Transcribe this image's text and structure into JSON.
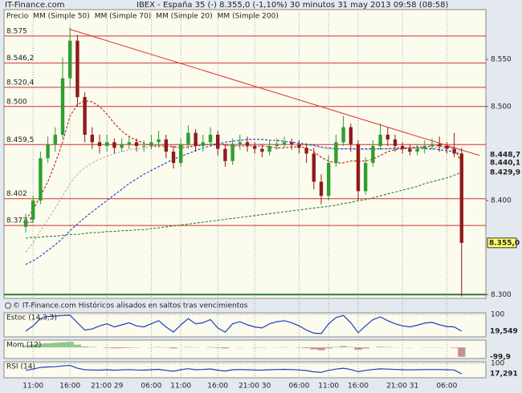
{
  "chart_data": [
    {
      "type": "candlestick",
      "site": "IT-Finance.com",
      "title": "IBEX - España 35 (-)   8.355,0 (-1,10%)   30 minutos  31 may 2013 09:58 (08:58)",
      "price_label": "Precio",
      "footer": "© IT-Finance.com  Históricos alisados en saltos tras vencimientos",
      "categories": [
        null,
        "11:00",
        null,
        null,
        null,
        null,
        "16:00",
        null,
        null,
        null,
        null,
        "21:00 29",
        null,
        null,
        null,
        null,
        null,
        "06:00",
        null,
        null,
        null,
        "11:00",
        null,
        null,
        null,
        null,
        "16:00",
        null,
        null,
        null,
        null,
        "21:00 30",
        null,
        null,
        null,
        null,
        null,
        "06:00",
        null,
        null,
        null,
        "11:00",
        null,
        null,
        null,
        "16:00",
        null,
        null,
        null,
        null,
        null,
        "21:00 31",
        null,
        null,
        null,
        null,
        null,
        "06:00",
        null,
        null
      ],
      "open": [
        8372,
        8380,
        8400,
        8445,
        8460,
        8470,
        8530,
        8570,
        8510,
        8470,
        8462,
        8458,
        8462,
        8456,
        8460,
        8462,
        8458,
        8458,
        8462,
        8465,
        8452,
        8440,
        8460,
        8472,
        8458,
        8462,
        8470,
        8455,
        8442,
        8460,
        8462,
        8458,
        8455,
        8452,
        8458,
        8460,
        8462,
        8460,
        8456,
        8450,
        8420,
        8405,
        8440,
        8462,
        8478,
        8460,
        8410,
        8440,
        8458,
        8470,
        8465,
        8458,
        8455,
        8452,
        8455,
        8458,
        8460,
        8458,
        8455,
        8450
      ],
      "high": [
        8386,
        8405,
        8452,
        8468,
        8478,
        8552,
        8584,
        8576,
        8515,
        8478,
        8470,
        8470,
        8466,
        8466,
        8468,
        8466,
        8464,
        8470,
        8474,
        8470,
        8458,
        8466,
        8480,
        8476,
        8470,
        8478,
        8474,
        8460,
        8466,
        8470,
        8468,
        8462,
        8460,
        8464,
        8466,
        8468,
        8466,
        8464,
        8460,
        8456,
        8428,
        8448,
        8470,
        8490,
        8482,
        8464,
        8446,
        8464,
        8482,
        8478,
        8470,
        8462,
        8460,
        8460,
        8464,
        8466,
        8468,
        8462,
        8472,
        8456
      ],
      "low": [
        8366,
        8376,
        8396,
        8440,
        8452,
        8466,
        8520,
        8500,
        8462,
        8455,
        8450,
        8452,
        8450,
        8452,
        8455,
        8452,
        8452,
        8454,
        8456,
        8445,
        8434,
        8436,
        8455,
        8452,
        8452,
        8458,
        8448,
        8436,
        8438,
        8454,
        8452,
        8450,
        8446,
        8448,
        8454,
        8456,
        8454,
        8450,
        8440,
        8412,
        8396,
        8400,
        8436,
        8458,
        8452,
        8400,
        8406,
        8436,
        8454,
        8458,
        8452,
        8450,
        8448,
        8448,
        8450,
        8454,
        8452,
        8450,
        8446,
        8298
      ],
      "close": [
        8380,
        8400,
        8445,
        8460,
        8470,
        8530,
        8570,
        8510,
        8470,
        8462,
        8458,
        8462,
        8456,
        8460,
        8462,
        8458,
        8458,
        8462,
        8465,
        8452,
        8440,
        8460,
        8472,
        8458,
        8462,
        8470,
        8455,
        8442,
        8460,
        8462,
        8458,
        8455,
        8452,
        8458,
        8460,
        8462,
        8460,
        8456,
        8450,
        8420,
        8405,
        8440,
        8462,
        8478,
        8460,
        8410,
        8440,
        8458,
        8470,
        8465,
        8458,
        8455,
        8452,
        8455,
        8458,
        8460,
        8458,
        8455,
        8450,
        8355
      ],
      "up_color": "#2f9e2f",
      "down_color": "#8e1b1b",
      "last_price": {
        "value": 8355,
        "label": "8.355,0"
      },
      "line_style": "dashed",
      "series": [
        {
          "name": "MM (Simple 50)",
          "color": "#b4b4b4",
          "values": [
            8345,
            8355,
            8368,
            8380,
            8392,
            8405,
            8418,
            8428,
            8435,
            8440,
            8444,
            8447,
            8450,
            8452,
            8454,
            8455,
            8456,
            8457,
            8458,
            8458,
            8458,
            8458,
            8459,
            8459,
            8459,
            8460,
            8460,
            8460,
            8460,
            8460,
            8460,
            8460,
            8460,
            8460,
            8460,
            8460,
            8460,
            8459,
            8459,
            8458,
            8456,
            8455,
            8455,
            8455,
            8455,
            8454,
            8454,
            8454,
            8455,
            8455,
            8455,
            8456,
            8456,
            8456,
            8456,
            8456,
            8456,
            8456,
            8455,
            8452
          ]
        },
        {
          "name": "MM (Simple 70)",
          "color": "#1f3fbf",
          "values": [
            8332,
            8336,
            8341,
            8347,
            8353,
            8360,
            8368,
            8375,
            8382,
            8388,
            8394,
            8400,
            8406,
            8412,
            8418,
            8423,
            8428,
            8432,
            8436,
            8440,
            8444,
            8447,
            8450,
            8453,
            8456,
            8458,
            8460,
            8462,
            8463,
            8464,
            8465,
            8465,
            8465,
            8464,
            8464,
            8463,
            8462,
            8461,
            8460,
            8459,
            8457,
            8456,
            8455,
            8455,
            8455,
            8455,
            8455,
            8455,
            8455,
            8455,
            8456,
            8456,
            8456,
            8456,
            8455,
            8455,
            8454,
            8453,
            8452,
            8448.7
          ],
          "value_labels": [
            null,
            null,
            null,
            null,
            null,
            null,
            null,
            null,
            null,
            null,
            null,
            null,
            null,
            null,
            null,
            null,
            null,
            null,
            null,
            null,
            null,
            null,
            null,
            null,
            null,
            null,
            null,
            null,
            null,
            null,
            null,
            null,
            null,
            null,
            null,
            null,
            null,
            null,
            null,
            null,
            null,
            null,
            null,
            null,
            null,
            null,
            null,
            null,
            null,
            null,
            null,
            null,
            null,
            null,
            null,
            null,
            null,
            null,
            null,
            "8.448,7"
          ]
        },
        {
          "name": "MM (Simple 20)",
          "color": "#b22222",
          "values": [
            8380,
            8390,
            8405,
            8420,
            8440,
            8462,
            8490,
            8502,
            8506,
            8505,
            8500,
            8492,
            8482,
            8474,
            8468,
            8464,
            8461,
            8458,
            8458,
            8458,
            8457,
            8456,
            8457,
            8458,
            8459,
            8460,
            8460,
            8459,
            8458,
            8458,
            8458,
            8458,
            8458,
            8457,
            8456,
            8456,
            8457,
            8457,
            8456,
            8452,
            8446,
            8442,
            8440,
            8440,
            8442,
            8442,
            8442,
            8444,
            8448,
            8452,
            8454,
            8455,
            8456,
            8457,
            8457,
            8458,
            8458,
            8457,
            8456,
            8440.1
          ],
          "value_labels": [
            null,
            null,
            null,
            null,
            null,
            null,
            null,
            null,
            null,
            null,
            null,
            null,
            null,
            null,
            null,
            null,
            null,
            null,
            null,
            null,
            null,
            null,
            null,
            null,
            null,
            null,
            null,
            null,
            null,
            null,
            null,
            null,
            null,
            null,
            null,
            null,
            null,
            null,
            null,
            null,
            null,
            null,
            null,
            null,
            null,
            null,
            null,
            null,
            null,
            null,
            null,
            null,
            null,
            null,
            null,
            null,
            null,
            null,
            null,
            "8.440,1"
          ]
        },
        {
          "name": "MM (Simple 200)",
          "color": "#2e7d2e",
          "values": [
            8360,
            8361,
            8361,
            8362,
            8362,
            8363,
            8364,
            8364,
            8365,
            8366,
            8366,
            8367,
            8367,
            8368,
            8368,
            8369,
            8369,
            8370,
            8371,
            8372,
            8373,
            8374,
            8375,
            8376,
            8377,
            8378,
            8379,
            8380,
            8381,
            8382,
            8383,
            8384,
            8385,
            8386,
            8387,
            8388,
            8389,
            8390,
            8391,
            8392,
            8393,
            8394,
            8395,
            8397,
            8398,
            8400,
            8401,
            8403,
            8405,
            8407,
            8409,
            8411,
            8413,
            8415,
            8418,
            8420,
            8422,
            8424,
            8427,
            8429.9
          ],
          "value_labels": [
            null,
            null,
            null,
            null,
            null,
            null,
            null,
            null,
            null,
            null,
            null,
            null,
            null,
            null,
            null,
            null,
            null,
            null,
            null,
            null,
            null,
            null,
            null,
            null,
            null,
            null,
            null,
            null,
            null,
            null,
            null,
            null,
            null,
            null,
            null,
            null,
            null,
            null,
            null,
            null,
            null,
            null,
            null,
            null,
            null,
            null,
            null,
            null,
            null,
            null,
            null,
            null,
            null,
            null,
            null,
            null,
            null,
            null,
            null,
            "8.429,9"
          ]
        }
      ],
      "levels": [
        {
          "value": 8575,
          "label": "8.575"
        },
        {
          "value": 8546.2,
          "label": "8.546,2"
        },
        {
          "value": 8520.4,
          "label": "8.520,4"
        },
        {
          "value": 8500,
          "label": "8.500"
        },
        {
          "value": 8459.5,
          "label": "8.459,5"
        },
        {
          "value": 8402,
          "label": "8.402"
        },
        {
          "value": 8373.5,
          "label": "8.373,5"
        }
      ],
      "level_color": "#d23030",
      "support_level": 8300,
      "support_color": "#2e7d2e",
      "trendline": {
        "x": [
          6,
          61.4
        ],
        "y": [
          8582,
          8448
        ],
        "color": "#e03030"
      },
      "ylim": [
        8296,
        8603
      ],
      "yticks": [
        {
          "value": 8550,
          "label": "8.550"
        },
        {
          "value": 8500,
          "label": "8.500"
        },
        {
          "value": 8400,
          "label": "8.400"
        },
        {
          "value": 8300,
          "label": "8.300"
        }
      ]
    },
    {
      "type": "line",
      "title": "Estoc (14,3,3)",
      "color": "#1f3fbf",
      "values": [
        20,
        45,
        80,
        90,
        92,
        95,
        96,
        60,
        25,
        30,
        45,
        55,
        40,
        50,
        60,
        45,
        40,
        55,
        70,
        40,
        15,
        50,
        80,
        55,
        60,
        75,
        35,
        15,
        55,
        65,
        50,
        40,
        35,
        55,
        65,
        70,
        60,
        45,
        25,
        10,
        8,
        55,
        85,
        95,
        60,
        12,
        45,
        75,
        88,
        70,
        55,
        45,
        40,
        48,
        58,
        62,
        50,
        42,
        40,
        19.549
      ],
      "value_labels": [
        null,
        null,
        null,
        null,
        null,
        null,
        null,
        null,
        null,
        null,
        null,
        null,
        null,
        null,
        null,
        null,
        null,
        null,
        null,
        null,
        null,
        null,
        null,
        null,
        null,
        null,
        null,
        null,
        null,
        null,
        null,
        null,
        null,
        null,
        null,
        null,
        null,
        null,
        null,
        null,
        null,
        null,
        null,
        null,
        null,
        null,
        null,
        null,
        null,
        null,
        null,
        null,
        null,
        null,
        null,
        null,
        null,
        null,
        null,
        "19,549"
      ],
      "ylim": [
        0,
        100
      ],
      "yticks": [
        100
      ]
    },
    {
      "type": "area",
      "title": "Mom (12)",
      "pos_color": "#8fc88f",
      "neg_color": "#c98f8f",
      "values": [
        20,
        30,
        40,
        45,
        50,
        55,
        60,
        30,
        10,
        5,
        0,
        -5,
        -10,
        -8,
        -5,
        -3,
        0,
        2,
        5,
        -3,
        -10,
        0,
        5,
        -2,
        0,
        5,
        -5,
        -10,
        0,
        2,
        0,
        -2,
        -3,
        0,
        2,
        3,
        0,
        -3,
        -8,
        -20,
        -30,
        -10,
        5,
        15,
        5,
        -25,
        -12,
        0,
        8,
        5,
        2,
        0,
        -2,
        0,
        2,
        3,
        2,
        0,
        -5,
        -99.9
      ],
      "value_labels": [
        null,
        null,
        null,
        null,
        null,
        null,
        null,
        null,
        null,
        null,
        null,
        null,
        null,
        null,
        null,
        null,
        null,
        null,
        null,
        null,
        null,
        null,
        null,
        null,
        null,
        null,
        null,
        null,
        null,
        null,
        null,
        null,
        null,
        null,
        null,
        null,
        null,
        null,
        null,
        null,
        null,
        null,
        null,
        null,
        null,
        null,
        null,
        null,
        null,
        null,
        null,
        null,
        null,
        null,
        null,
        null,
        null,
        null,
        null,
        "-99,9"
      ],
      "ylim": [
        -110,
        70
      ],
      "yticks": []
    },
    {
      "type": "line",
      "title": "RSI (14)",
      "color": "#1f3fbf",
      "values": [
        45,
        55,
        68,
        72,
        74,
        80,
        84,
        62,
        50,
        48,
        47,
        50,
        46,
        49,
        51,
        48,
        47,
        50,
        53,
        45,
        38,
        50,
        58,
        50,
        52,
        56,
        46,
        40,
        50,
        52,
        50,
        48,
        47,
        50,
        52,
        53,
        51,
        48,
        44,
        34,
        30,
        45,
        55,
        62,
        52,
        35,
        45,
        52,
        57,
        55,
        52,
        50,
        49,
        50,
        51,
        52,
        51,
        50,
        48,
        17.291
      ],
      "value_labels": [
        null,
        null,
        null,
        null,
        null,
        null,
        null,
        null,
        null,
        null,
        null,
        null,
        null,
        null,
        null,
        null,
        null,
        null,
        null,
        null,
        null,
        null,
        null,
        null,
        null,
        null,
        null,
        null,
        null,
        null,
        null,
        null,
        null,
        null,
        null,
        null,
        null,
        null,
        null,
        null,
        null,
        null,
        null,
        null,
        null,
        null,
        null,
        null,
        null,
        null,
        null,
        null,
        null,
        null,
        null,
        null,
        null,
        null,
        null,
        "17,291"
      ],
      "ylim": [
        0,
        100
      ],
      "yticks": [
        100
      ]
    }
  ]
}
